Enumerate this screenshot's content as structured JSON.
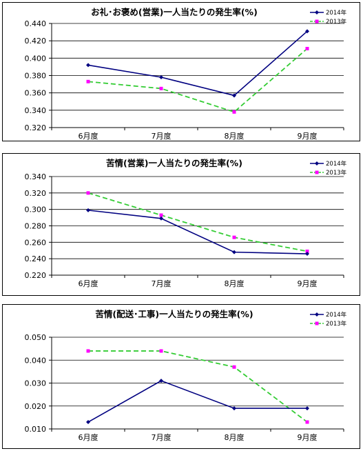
{
  "colors": {
    "series_2014": "#000080",
    "series_2013": "#33cc33",
    "marker_2013": "#ff00ff",
    "marker_2014": "#000080"
  },
  "chart_data": [
    {
      "type": "line",
      "title": "お礼･お褒め(営業)一人当たりの発生率(%)",
      "categories": [
        "6月度",
        "7月度",
        "8月度",
        "9月度"
      ],
      "yticks": [
        "0.320",
        "0.340",
        "0.360",
        "0.380",
        "0.400",
        "0.420",
        "0.440"
      ],
      "ylim": [
        0.32,
        0.44
      ],
      "grid": true,
      "legend_position": "top-right",
      "series": [
        {
          "name": "2014年",
          "values": [
            0.392,
            0.378,
            0.357,
            0.431
          ]
        },
        {
          "name": "2013年",
          "values": [
            0.373,
            0.365,
            0.338,
            0.411
          ]
        }
      ]
    },
    {
      "type": "line",
      "title": "苦情(営業)一人当たりの発生率(%)",
      "categories": [
        "6月度",
        "7月度",
        "8月度",
        "9月度"
      ],
      "yticks": [
        "0.220",
        "0.240",
        "0.260",
        "0.280",
        "0.300",
        "0.320",
        "0.340"
      ],
      "ylim": [
        0.22,
        0.34
      ],
      "grid": true,
      "legend_position": "top-right",
      "series": [
        {
          "name": "2014年",
          "values": [
            0.299,
            0.289,
            0.248,
            0.246
          ]
        },
        {
          "name": "2013年",
          "values": [
            0.32,
            0.293,
            0.266,
            0.249
          ]
        }
      ]
    },
    {
      "type": "line",
      "title": "苦情(配送･工事)一人当たりの発生率(%)",
      "categories": [
        "6月度",
        "7月度",
        "8月度",
        "9月度"
      ],
      "yticks": [
        "0.010",
        "0.020",
        "0.030",
        "0.040",
        "0.050"
      ],
      "ylim": [
        0.01,
        0.05
      ],
      "grid": true,
      "legend_position": "top-right",
      "series": [
        {
          "name": "2014年",
          "values": [
            0.013,
            0.031,
            0.019,
            0.019
          ]
        },
        {
          "name": "2013年",
          "values": [
            0.044,
            0.044,
            0.037,
            0.013
          ]
        }
      ]
    }
  ]
}
